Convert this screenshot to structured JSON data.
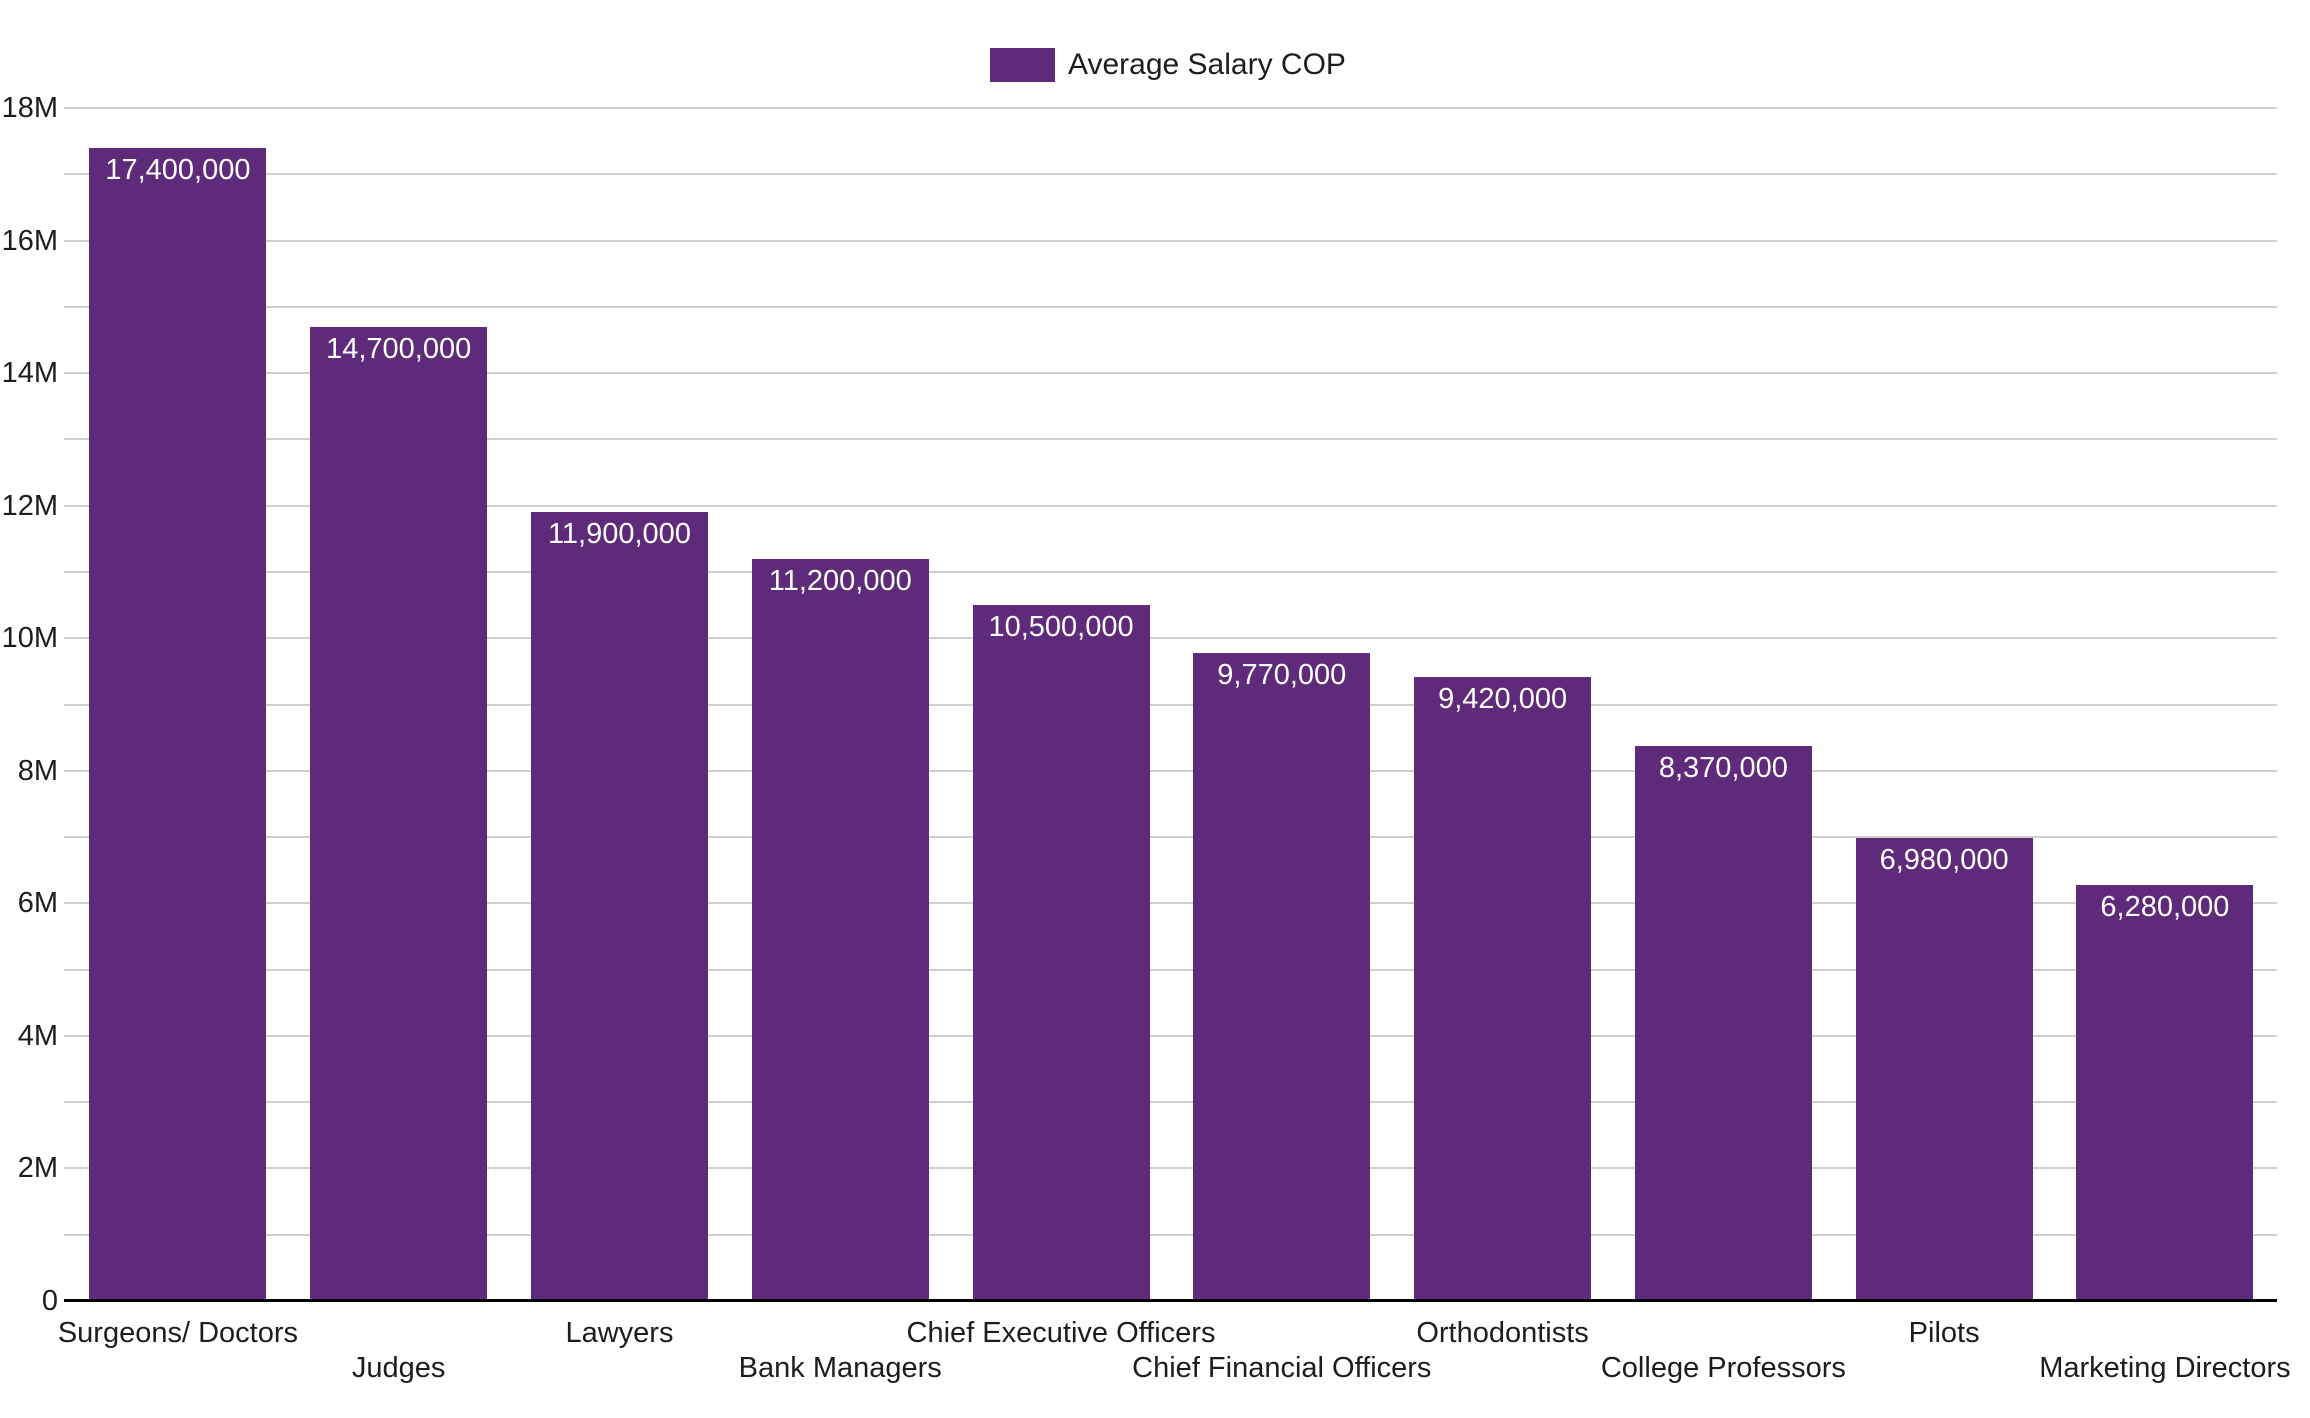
{
  "chart_data": {
    "type": "bar",
    "title": "",
    "legend": {
      "label": "Average Salary COP",
      "position": "top"
    },
    "categories": [
      "Surgeons/ Doctors",
      "Judges",
      "Lawyers",
      "Bank Managers",
      "Chief Executive Officers",
      "Chief Financial Officers",
      "Orthodontists",
      "College Professors",
      "Pilots",
      "Marketing Directors"
    ],
    "series": [
      {
        "name": "Average Salary COP",
        "values": [
          17400000,
          14700000,
          11900000,
          11200000,
          10500000,
          9770000,
          9420000,
          8370000,
          6980000,
          6280000
        ],
        "labels": [
          "17,400,000",
          "14,700,000",
          "11,900,000",
          "11,200,000",
          "10,500,000",
          "9,770,000",
          "9,420,000",
          "8,370,000",
          "6,980,000",
          "6,280,000"
        ]
      }
    ],
    "xlabel": "",
    "ylabel": "",
    "ylim": [
      0,
      18000000
    ],
    "yticks": [
      {
        "value": 0,
        "label": "0"
      },
      {
        "value": 2000000,
        "label": "2M"
      },
      {
        "value": 4000000,
        "label": "4M"
      },
      {
        "value": 6000000,
        "label": "6M"
      },
      {
        "value": 8000000,
        "label": "8M"
      },
      {
        "value": 10000000,
        "label": "10M"
      },
      {
        "value": 12000000,
        "label": "12M"
      },
      {
        "value": 14000000,
        "label": "14M"
      },
      {
        "value": 16000000,
        "label": "16M"
      },
      {
        "value": 18000000,
        "label": "18M"
      }
    ],
    "grid": {
      "visible": true,
      "minor_step": 1000000,
      "legend_position": "top"
    },
    "colors": {
      "bar": "#5F2A7A",
      "grid": "#CFCFCF",
      "axis": "#000000",
      "value_label": "#FFFFFF",
      "text": "#1D1D1D",
      "background": "#FFFFFF"
    }
  }
}
